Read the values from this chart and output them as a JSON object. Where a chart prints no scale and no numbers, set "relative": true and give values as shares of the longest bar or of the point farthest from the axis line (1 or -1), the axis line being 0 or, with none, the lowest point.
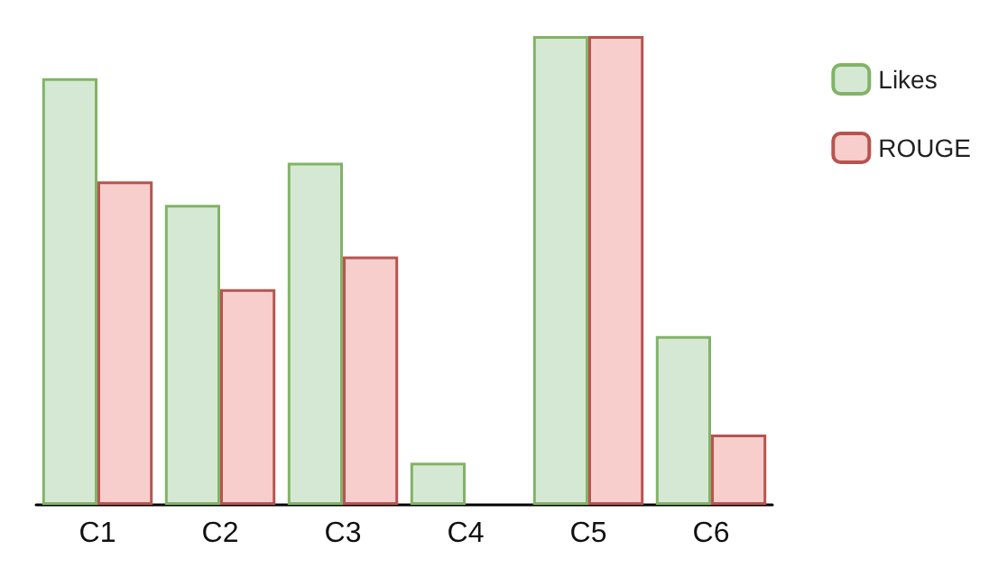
{
  "chart_data": {
    "type": "bar",
    "relative": true,
    "categories": [
      "C1",
      "C2",
      "C3",
      "C4",
      "C5",
      "C6"
    ],
    "series": [
      {
        "name": "Likes",
        "color": "#d5e8d4",
        "values": [
          0.91,
          0.64,
          0.73,
          0.09,
          1,
          0.36
        ]
      },
      {
        "name": "ROUGE",
        "color": "#f8cecc",
        "values": [
          0.69,
          0.46,
          0.53,
          null,
          1,
          0.15
        ]
      }
    ],
    "legend": "right"
  }
}
